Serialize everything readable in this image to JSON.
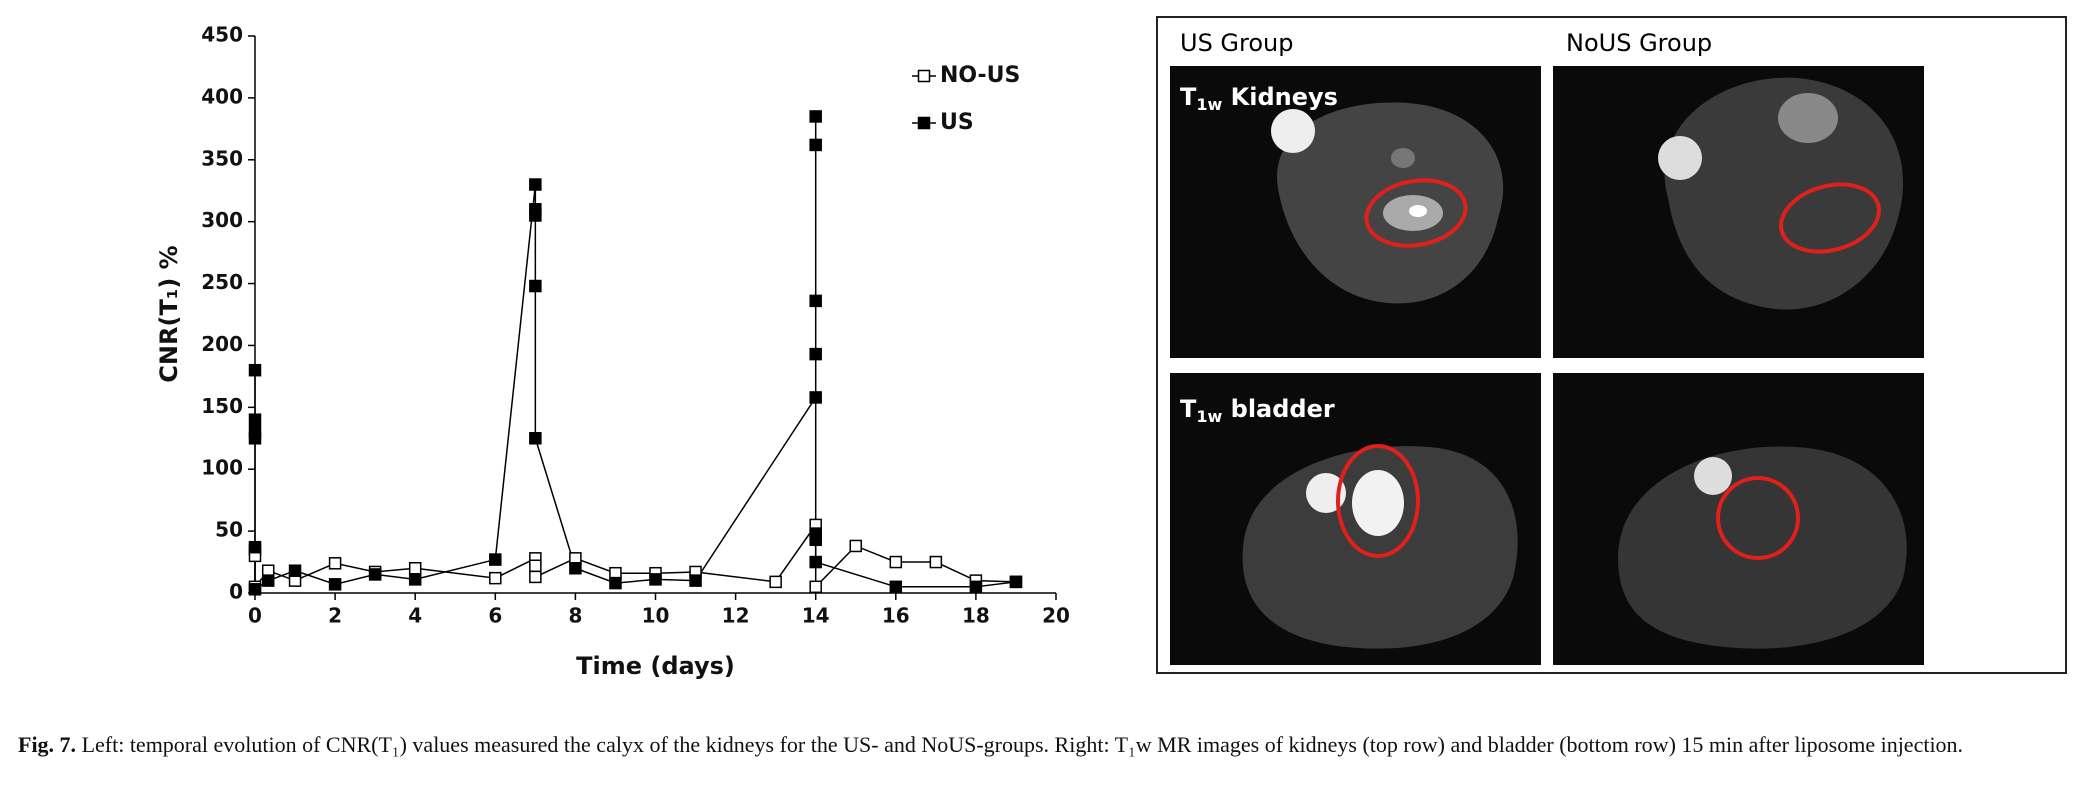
{
  "chart_data": {
    "type": "line",
    "xlabel": "Time (days)",
    "ylabel": "CNR(T₁) %",
    "xlim": [
      0,
      20
    ],
    "xticks": [
      0,
      2,
      4,
      6,
      8,
      10,
      12,
      14,
      16,
      18,
      20
    ],
    "ylim": [
      0,
      450
    ],
    "yticks": [
      0,
      50,
      100,
      150,
      200,
      250,
      300,
      350,
      400,
      450
    ],
    "grid": false,
    "legend": "top-right",
    "series": [
      {
        "name": "NO-US",
        "color": "#000000",
        "marker": "open-square",
        "x": [
          0,
          0,
          0,
          0.33,
          1,
          2,
          3,
          4,
          6,
          7,
          7,
          7,
          8,
          9,
          10,
          11,
          13,
          14,
          14,
          14,
          15,
          16,
          17,
          18,
          19
        ],
        "values": [
          35,
          30,
          5,
          18,
          10,
          24,
          17,
          20,
          12,
          28,
          22,
          13,
          28,
          16,
          16,
          17,
          9,
          55,
          48,
          5,
          38,
          25,
          25,
          10,
          9
        ]
      },
      {
        "name": "US",
        "color": "#000000",
        "marker": "filled-square",
        "x": [
          0,
          0,
          0,
          0,
          0,
          0,
          0.33,
          1,
          2,
          3,
          4,
          6,
          7,
          7,
          7,
          7,
          7,
          8,
          9,
          10,
          11,
          14,
          14,
          14,
          14,
          14,
          14,
          14,
          14,
          16,
          18,
          19
        ],
        "values": [
          180,
          140,
          125,
          130,
          37,
          3,
          10,
          18,
          7,
          15,
          11,
          27,
          330,
          310,
          305,
          248,
          125,
          20,
          8,
          11,
          10,
          158,
          193,
          236,
          362,
          385,
          47,
          43,
          25,
          5,
          5,
          9
        ]
      }
    ]
  },
  "panels": {
    "col_headers": [
      "US Group",
      "NoUS Group"
    ],
    "row_labels": [
      {
        "main": "T",
        "sub": "1w",
        "rest": " Kidneys"
      },
      {
        "main": "T",
        "sub": "1w",
        "rest": " bladder"
      }
    ]
  },
  "caption": {
    "label": "Fig. 7.",
    "text": " Left: temporal evolution of CNR(T₁) values measured the calyx of the kidneys for the US- and NoUS-groups. Right: T₁w MR images of kidneys (top row) and bladder (bottom row) 15 min after liposome injection."
  }
}
